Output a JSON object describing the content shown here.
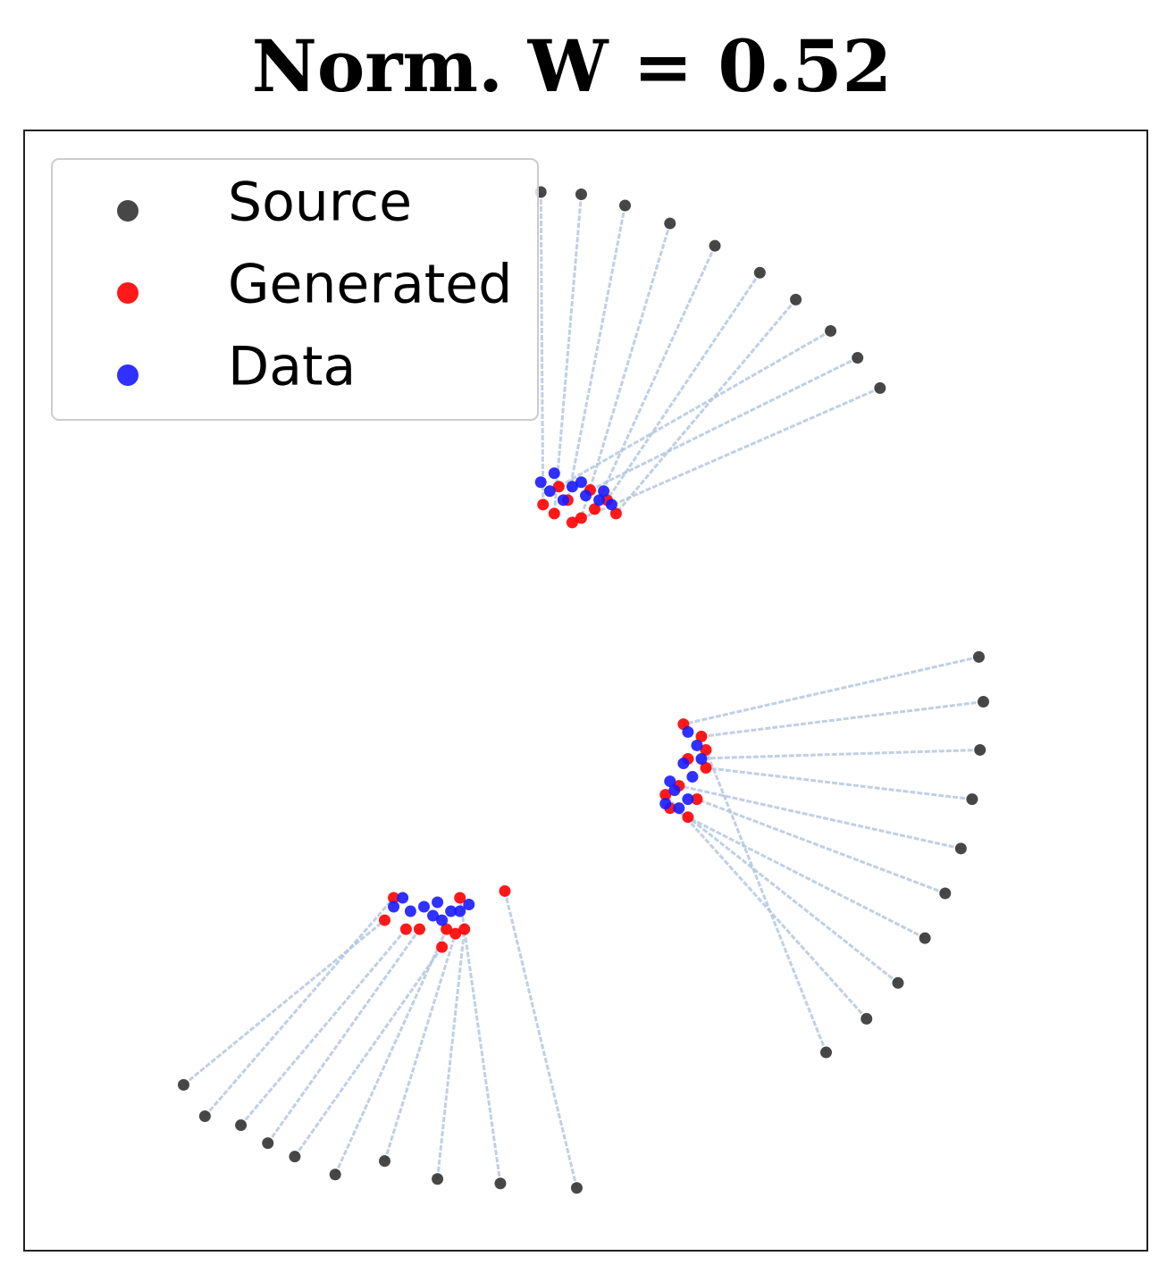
{
  "chart_data": {
    "type": "scatter",
    "title": "Norm. W = 0.52",
    "xlim": [
      0,
      100
    ],
    "ylim": [
      0,
      100
    ],
    "legend": "upper left",
    "link_color": "#b0c4de",
    "series": [
      {
        "name": "Source",
        "color": "#333333",
        "x": [
          46.0,
          49.6,
          53.5,
          57.5,
          61.5,
          65.5,
          68.7,
          71.8,
          74.2,
          76.2,
          85.0,
          85.4,
          85.1,
          84.4,
          83.4,
          82.0,
          80.2,
          77.8,
          75.0,
          71.4,
          14.2,
          16.1,
          19.3,
          21.7,
          24.1,
          27.7,
          32.1,
          36.8,
          42.4,
          49.2
        ],
        "values": [
          94.5,
          94.3,
          93.3,
          91.7,
          89.7,
          87.3,
          84.9,
          82.1,
          79.7,
          77.0,
          53.0,
          49.0,
          44.7,
          40.3,
          35.9,
          31.9,
          27.9,
          23.9,
          20.7,
          17.7,
          14.8,
          12.0,
          11.2,
          9.6,
          8.4,
          6.8,
          8.0,
          6.4,
          6.0,
          5.6
        ]
      },
      {
        "name": "Generated",
        "color": "#ff0000",
        "x": [
          46.2,
          47.2,
          48.4,
          49.6,
          50.8,
          51.9,
          52.7,
          47.6,
          50.4,
          48.8,
          58.7,
          60.3,
          59.1,
          60.7,
          58.3,
          59.9,
          57.5,
          59.1,
          57.1,
          60.7,
          32.1,
          32.9,
          34.0,
          35.2,
          37.2,
          37.6,
          38.4,
          39.2,
          38.8,
          42.8
        ],
        "values": [
          66.6,
          65.8,
          67.0,
          65.4,
          66.2,
          67.0,
          65.8,
          68.2,
          67.9,
          65.0,
          47.0,
          45.9,
          43.9,
          43.1,
          41.5,
          40.3,
          39.5,
          38.7,
          40.7,
          44.7,
          29.5,
          31.5,
          28.7,
          28.7,
          27.1,
          28.7,
          28.3,
          28.7,
          31.5,
          32.1
        ]
      },
      {
        "name": "Data",
        "color": "#1a1aff",
        "x": [
          46.0,
          47.2,
          48.8,
          50.0,
          51.2,
          52.3,
          46.8,
          49.6,
          48.0,
          51.6,
          59.1,
          59.9,
          58.7,
          59.5,
          57.9,
          59.1,
          57.1,
          58.3,
          60.3,
          57.5,
          32.9,
          33.7,
          34.4,
          35.6,
          36.4,
          37.2,
          38.0,
          38.8,
          39.6,
          36.8
        ],
        "values": [
          68.6,
          69.4,
          68.2,
          67.4,
          67.0,
          66.6,
          67.8,
          68.6,
          67.0,
          67.8,
          46.3,
          45.1,
          43.5,
          42.3,
          41.1,
          40.3,
          39.9,
          39.5,
          43.9,
          41.9,
          30.7,
          31.5,
          30.3,
          30.7,
          29.9,
          29.5,
          30.3,
          30.3,
          30.9,
          31.1
        ]
      }
    ]
  }
}
